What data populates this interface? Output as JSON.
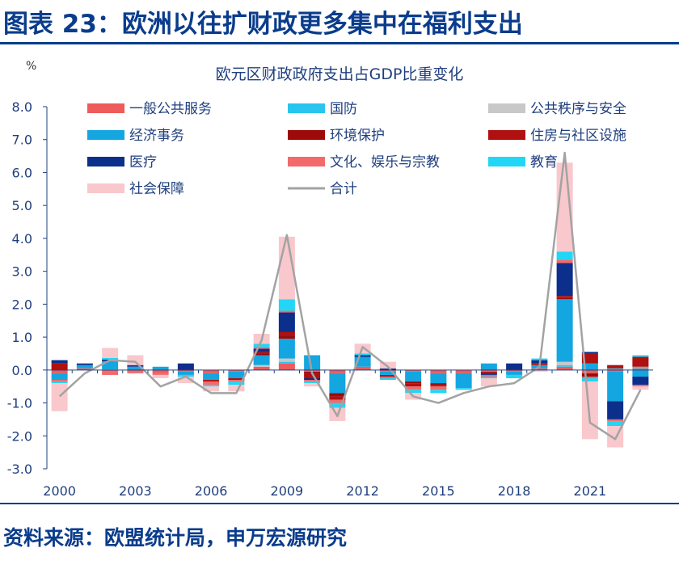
{
  "header": {
    "title": "图表 23：欧洲以往扩财政更多集中在福利支出"
  },
  "footer": {
    "source": "资料来源：欧盟统计局，申万宏源研究"
  },
  "colors": {
    "general_public": "#ee5b5b",
    "defense": "#29c5ee",
    "public_order": "#c8c8c8",
    "economic": "#14a6e0",
    "environment": "#9c0a0a",
    "housing": "#b01010",
    "health": "#0c2f8c",
    "culture": "#f26a6a",
    "education": "#22d6f6",
    "social": "#f9c8cc",
    "total": "#a3a3a3",
    "axis_text": "#1f3f7e",
    "title_blue": "#0a3c8c"
  },
  "chart_data": {
    "type": "bar",
    "stacked": true,
    "title": "欧元区财政政府支出占GDP比重变化",
    "ylabel": "%",
    "xlabel": "",
    "ylim": [
      -3.0,
      8.0
    ],
    "yticks": [
      "8.0",
      "7.0",
      "6.0",
      "5.0",
      "4.0",
      "3.0",
      "2.0",
      "1.0",
      "0.0",
      "-1.0",
      "-2.0",
      "-3.0"
    ],
    "ytick_values": [
      8,
      7,
      6,
      5,
      4,
      3,
      2,
      1,
      0,
      -1,
      -2,
      -3
    ],
    "categories": [
      "2000",
      "2001",
      "2002",
      "2003",
      "2004",
      "2005",
      "2006",
      "2007",
      "2008",
      "2009",
      "2010",
      "2011",
      "2012",
      "2013",
      "2014",
      "2015",
      "2016",
      "2017",
      "2018",
      "2019",
      "2020",
      "2021",
      "2022",
      "2023"
    ],
    "xtick_labels": [
      "2000",
      "2003",
      "2006",
      "2009",
      "2012",
      "2015",
      "2018",
      "2021"
    ],
    "xtick_years": [
      "2000",
      "2003",
      "2006",
      "2009",
      "2012",
      "2015",
      "2018",
      "2021"
    ],
    "series": [
      {
        "key": "general_public",
        "name": "一般公共服务",
        "values": [
          -0.1,
          0.05,
          -0.05,
          -0.05,
          -0.1,
          -0.05,
          -0.1,
          -0.05,
          0.1,
          0.2,
          -0.05,
          -0.1,
          0.1,
          -0.05,
          -0.05,
          -0.1,
          -0.1,
          -0.05,
          -0.05,
          0.05,
          0.1,
          -0.1,
          -0.05,
          0.05
        ]
      },
      {
        "key": "defense",
        "name": "国防",
        "values": [
          0.0,
          0.0,
          0.0,
          0.0,
          0.0,
          0.0,
          0.0,
          0.0,
          0.0,
          0.05,
          0.0,
          0.0,
          0.0,
          0.0,
          0.0,
          0.0,
          0.0,
          0.0,
          0.0,
          0.0,
          0.05,
          0.0,
          0.05,
          0.05
        ]
      },
      {
        "key": "public_order",
        "name": "公共秩序与安全",
        "values": [
          0.0,
          0.0,
          0.02,
          0.0,
          0.0,
          0.0,
          0.0,
          0.0,
          0.05,
          0.1,
          0.0,
          0.0,
          0.0,
          0.0,
          0.0,
          0.0,
          0.0,
          0.0,
          0.0,
          0.0,
          0.1,
          0.0,
          0.0,
          0.0
        ]
      },
      {
        "key": "economic",
        "name": "经济事务",
        "values": [
          -0.2,
          0.1,
          0.25,
          0.1,
          0.1,
          -0.1,
          -0.2,
          -0.2,
          0.3,
          0.6,
          0.45,
          -0.6,
          0.3,
          -0.1,
          -0.3,
          -0.3,
          -0.45,
          0.2,
          -0.1,
          0.1,
          1.9,
          0.2,
          -0.9,
          -0.2
        ]
      },
      {
        "key": "environment",
        "name": "环境保护",
        "values": [
          0.0,
          0.0,
          0.0,
          0.0,
          0.0,
          0.0,
          0.0,
          0.0,
          0.05,
          0.1,
          -0.05,
          -0.1,
          0.0,
          0.0,
          -0.05,
          -0.05,
          0.0,
          0.0,
          0.0,
          0.0,
          0.05,
          -0.1,
          0.0,
          0.0
        ]
      },
      {
        "key": "housing",
        "name": "住房与社区设施",
        "values": [
          0.2,
          0.0,
          0.0,
          0.0,
          0.0,
          0.0,
          -0.05,
          -0.05,
          0.05,
          0.1,
          -0.15,
          -0.1,
          0.0,
          -0.05,
          -0.1,
          -0.05,
          0.0,
          -0.05,
          0.0,
          0.05,
          0.05,
          0.3,
          0.1,
          0.3
        ]
      },
      {
        "key": "health",
        "name": "医疗",
        "values": [
          0.1,
          0.05,
          0.05,
          0.05,
          0.0,
          0.2,
          0.0,
          0.0,
          0.1,
          0.6,
          -0.05,
          0.0,
          0.05,
          0.05,
          0.0,
          0.0,
          0.0,
          -0.05,
          0.2,
          0.1,
          1.0,
          0.05,
          -0.55,
          -0.25
        ]
      },
      {
        "key": "culture",
        "name": "文化、娱乐与宗教",
        "values": [
          -0.05,
          0.0,
          -0.1,
          -0.05,
          -0.05,
          0.0,
          -0.1,
          -0.05,
          0.05,
          0.05,
          -0.05,
          -0.1,
          0.0,
          -0.05,
          -0.1,
          -0.1,
          0.0,
          -0.05,
          0.0,
          0.0,
          0.1,
          -0.05,
          -0.05,
          -0.05
        ]
      },
      {
        "key": "education",
        "name": "教育",
        "values": [
          -0.05,
          0.0,
          0.05,
          0.0,
          0.0,
          -0.05,
          -0.05,
          -0.1,
          0.1,
          0.35,
          -0.05,
          -0.15,
          0.05,
          -0.05,
          -0.1,
          -0.1,
          -0.05,
          -0.05,
          -0.1,
          0.05,
          0.25,
          -0.1,
          -0.15,
          0.05
        ]
      },
      {
        "key": "social",
        "name": "社会保障",
        "values": [
          -0.85,
          0.0,
          0.3,
          0.3,
          -0.1,
          -0.2,
          -0.15,
          -0.2,
          0.3,
          1.9,
          -0.1,
          -0.4,
          0.3,
          0.2,
          -0.2,
          0.0,
          0.0,
          -0.25,
          0.0,
          -0.05,
          2.7,
          -1.75,
          -0.65,
          -0.1
        ]
      }
    ],
    "total": {
      "key": "total",
      "name": "合计",
      "values": [
        -0.8,
        -0.1,
        0.3,
        0.25,
        -0.5,
        -0.2,
        -0.7,
        -0.7,
        0.9,
        4.1,
        -0.1,
        -1.4,
        0.7,
        0.1,
        -0.8,
        -1.0,
        -0.7,
        -0.5,
        -0.4,
        0.1,
        6.6,
        -1.6,
        -2.1,
        -0.6
      ]
    }
  }
}
